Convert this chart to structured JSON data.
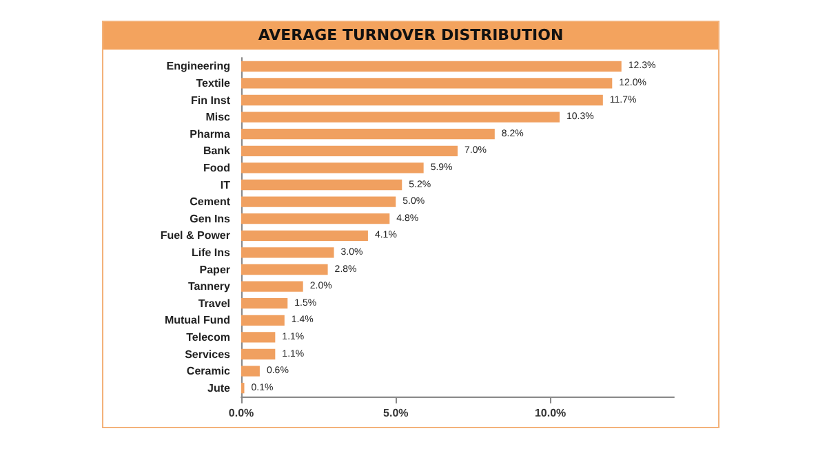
{
  "chart_data": {
    "type": "bar",
    "orientation": "horizontal",
    "title": "AVERAGE TURNOVER DISTRIBUTION",
    "categories": [
      "Engineering",
      "Textile",
      "Fin Inst",
      "Misc",
      "Pharma",
      "Bank",
      "Food",
      "IT",
      "Cement",
      "Gen Ins",
      "Fuel & Power",
      "Life Ins",
      "Paper",
      "Tannery",
      "Travel",
      "Mutual Fund",
      "Telecom",
      "Services",
      "Ceramic",
      "Jute"
    ],
    "values": [
      12.3,
      12.0,
      11.7,
      10.3,
      8.2,
      7.0,
      5.9,
      5.2,
      5.0,
      4.8,
      4.1,
      3.0,
      2.8,
      2.0,
      1.5,
      1.4,
      1.1,
      1.1,
      0.6,
      0.1
    ],
    "value_labels": [
      "12.3%",
      "12.0%",
      "11.7%",
      "10.3%",
      "8.2%",
      "7.0%",
      "5.9%",
      "5.2%",
      "5.0%",
      "4.8%",
      "4.1%",
      "3.0%",
      "2.8%",
      "2.0%",
      "1.5%",
      "1.4%",
      "1.1%",
      "1.1%",
      "0.6%",
      "0.1%"
    ],
    "color": "#f0a060",
    "xlim": [
      0,
      14
    ],
    "xticks": [
      {
        "value": 0,
        "label": "0.0%"
      },
      {
        "value": 5,
        "label": "5.0%"
      },
      {
        "value": 10,
        "label": "10.0%"
      }
    ],
    "grid": false
  }
}
